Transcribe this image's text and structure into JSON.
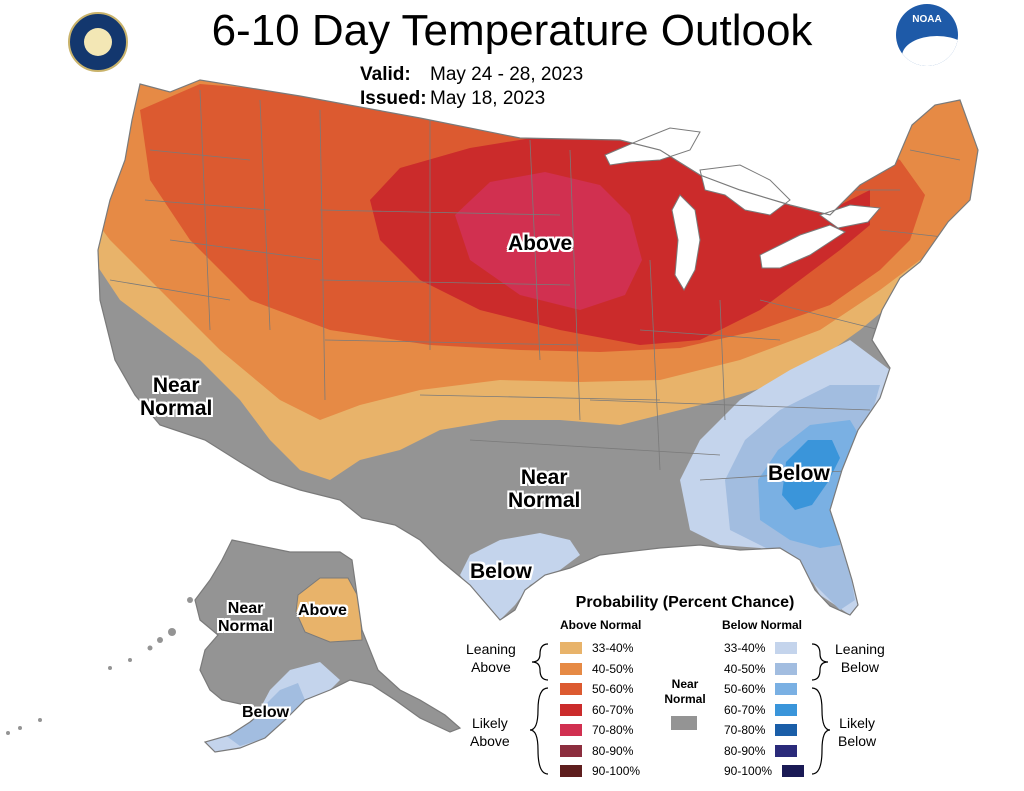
{
  "title": "6-10 Day Temperature Outlook",
  "valid_label": "Valid:",
  "valid_value": "May 24 - 28, 2023",
  "issued_label": "Issued:",
  "issued_value": "May 18, 2023",
  "logos": {
    "left": "department-of-commerce-seal",
    "right_text": "NOAA"
  },
  "regions": {
    "above_midwest": "Above",
    "near_normal_west": "Near\nNormal",
    "near_normal_south": "Near\nNormal",
    "below_southeast": "Below",
    "below_texas": "Below",
    "alaska_near_normal": "Near\nNormal",
    "alaska_above": "Above",
    "alaska_below": "Below"
  },
  "colors": {
    "above_33_40": "#e8b36a",
    "above_40_50": "#e68a45",
    "above_50_60": "#dc5a30",
    "above_60_70": "#cb2b2b",
    "above_70_80": "#d13050",
    "above_80_90": "#8c2e3e",
    "above_90_100": "#5e1e1e",
    "near_normal": "#949494",
    "below_33_40": "#c4d4ec",
    "below_40_50": "#a2bde0",
    "below_50_60": "#7ab0e3",
    "below_60_70": "#3a95da",
    "below_70_80": "#1a5ea8",
    "below_80_90": "#2a2a7a",
    "below_90_100": "#1a1a55",
    "state_border": "#7a7a7a"
  },
  "legend": {
    "title": "Probability (Percent Chance)",
    "above_header": "Above Normal",
    "below_header": "Below Normal",
    "near_label": "Near\nNormal",
    "leaning_above": "Leaning\nAbove",
    "likely_above": "Likely\nAbove",
    "leaning_below": "Leaning\nBelow",
    "likely_below": "Likely\nBelow",
    "above_items": [
      {
        "label": "33-40%",
        "color": "#e8b36a"
      },
      {
        "label": "40-50%",
        "color": "#e68a45"
      },
      {
        "label": "50-60%",
        "color": "#dc5a30"
      },
      {
        "label": "60-70%",
        "color": "#cb2b2b"
      },
      {
        "label": "70-80%",
        "color": "#d13050"
      },
      {
        "label": "80-90%",
        "color": "#8c2e3e"
      },
      {
        "label": "90-100%",
        "color": "#5e1e1e"
      }
    ],
    "below_items": [
      {
        "label": "33-40%",
        "color": "#c4d4ec"
      },
      {
        "label": "40-50%",
        "color": "#a2bde0"
      },
      {
        "label": "50-60%",
        "color": "#7ab0e3"
      },
      {
        "label": "60-70%",
        "color": "#3a95da"
      },
      {
        "label": "70-80%",
        "color": "#1a5ea8"
      },
      {
        "label": "80-90%",
        "color": "#2a2a7a"
      },
      {
        "label": "90-100%",
        "color": "#1a1a55"
      }
    ]
  }
}
